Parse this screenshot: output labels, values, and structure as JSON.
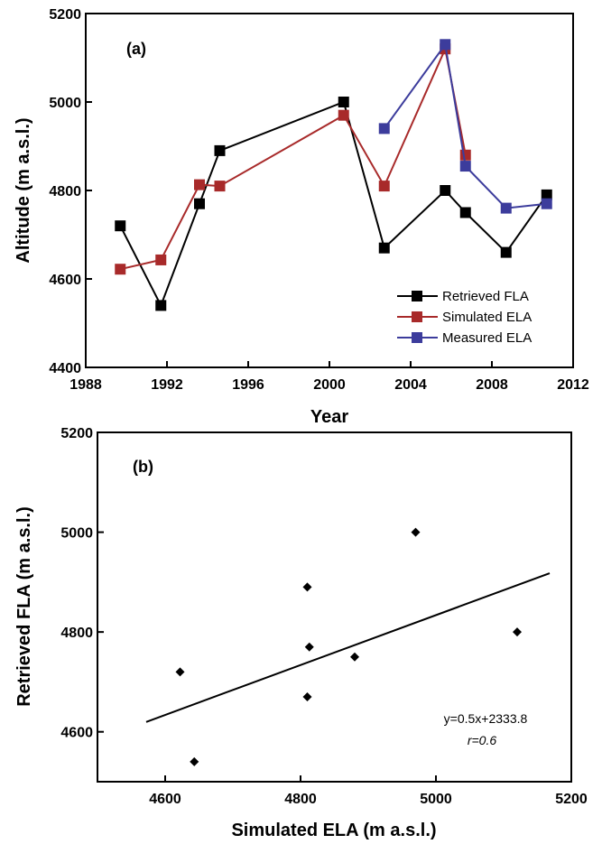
{
  "chart_data": [
    {
      "type": "line",
      "panel_label": "(a)",
      "xlabel": "Year",
      "ylabel": "Altitude (m a.s.l.)",
      "xlim": [
        1988,
        2012
      ],
      "ylim": [
        4400,
        5200
      ],
      "xticks": [
        1988,
        1992,
        1996,
        2000,
        2004,
        2008,
        2012
      ],
      "yticks": [
        4400,
        4600,
        4800,
        5000,
        5200
      ],
      "legend_position": "bottom-right",
      "series": [
        {
          "name": "Retrieved FLA",
          "color": "#000000",
          "x": [
            1989.7,
            1991.7,
            1993.6,
            1994.6,
            2000.7,
            2002.7,
            2005.7,
            2006.7,
            2008.7,
            2010.7
          ],
          "y": [
            4720,
            4540,
            4770,
            4890,
            5000,
            4670,
            4800,
            4750,
            4660,
            4790
          ]
        },
        {
          "name": "Simulated ELA",
          "color": "#a82a2a",
          "x": [
            1989.7,
            1991.7,
            1993.6,
            1994.6,
            2000.7,
            2002.7,
            2005.7,
            2006.7
          ],
          "y": [
            4622,
            4643,
            4813,
            4810,
            4970,
            4810,
            5120,
            4880
          ]
        },
        {
          "name": "Measured ELA",
          "color": "#3c3c9c",
          "x": [
            2002.7,
            2005.7,
            2006.7,
            2008.7,
            2010.7
          ],
          "y": [
            4940,
            5130,
            4855,
            4760,
            4770
          ]
        }
      ]
    },
    {
      "type": "scatter",
      "panel_label": "(b)",
      "xlabel": "Simulated ELA (m a.s.l.)",
      "ylabel": "Retrieved FLA (m a.s.l.)",
      "xlim": [
        4500,
        5200
      ],
      "ylim": [
        4500,
        5200
      ],
      "xticks": [
        4600,
        4800,
        5000,
        5200
      ],
      "yticks": [
        4600,
        4800,
        5000,
        5200
      ],
      "points": {
        "x": [
          4622,
          4643,
          4810,
          4813,
          4810,
          4880,
          4970,
          5120
        ],
        "y": [
          4720,
          4540,
          4890,
          4770,
          4670,
          4750,
          5000,
          4800
        ]
      },
      "fit_line": {
        "slope": 0.5,
        "intercept": 2333.8,
        "x_range": [
          4572,
          5168
        ]
      },
      "equation": "y=0.5x+2333.8",
      "r_label": "r=0.6"
    }
  ]
}
